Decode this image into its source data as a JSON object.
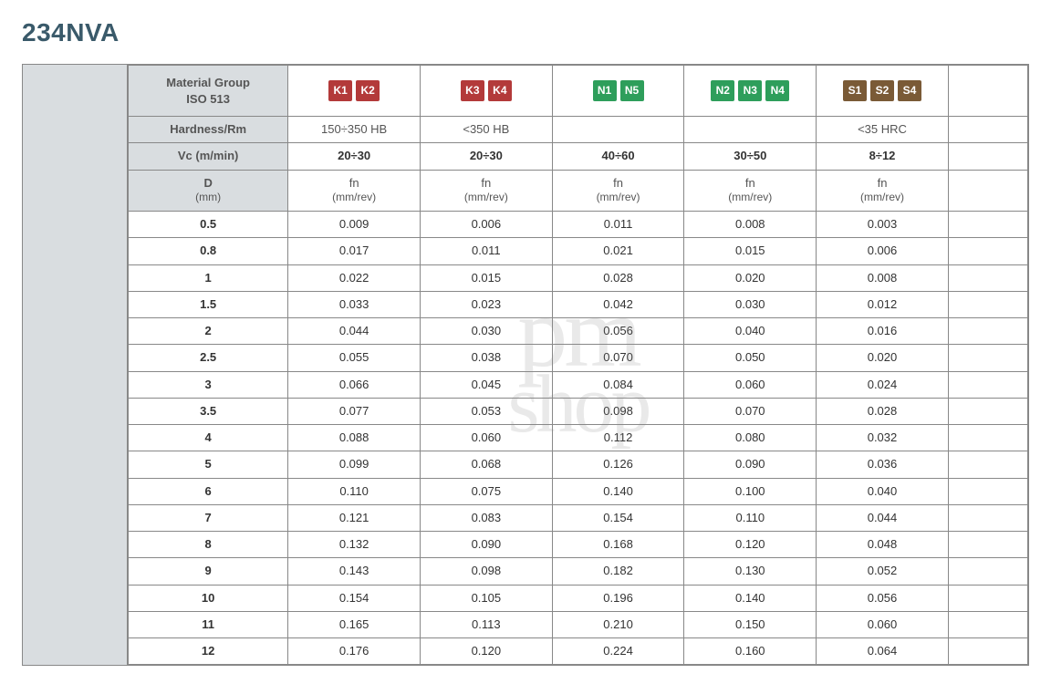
{
  "title": "234NVA",
  "colors": {
    "header_bg": "#d9dde0",
    "border": "#888888",
    "title_color": "#3a5a6a",
    "text": "#333333",
    "muted": "#555555",
    "badge_red": "#b33a3a",
    "badge_green": "#2e9e5b",
    "badge_brown": "#7a5a36"
  },
  "header": {
    "material_group_l1": "Material Group",
    "material_group_l2": "ISO 513",
    "hardness_label": "Hardness/Rm",
    "vc_label": "Vc (m/min)",
    "d_label_l1": "D",
    "d_label_l2": "(mm)",
    "fn_label_l1": "fn",
    "fn_label_l2": "(mm/rev)"
  },
  "columns": [
    {
      "badges": [
        "K1",
        "K2"
      ],
      "badge_color": "#b33a3a",
      "hardness": "150÷350 HB",
      "vc": "20÷30"
    },
    {
      "badges": [
        "K3",
        "K4"
      ],
      "badge_color": "#b33a3a",
      "hardness": "<350 HB",
      "vc": "20÷30"
    },
    {
      "badges": [
        "N1",
        "N5"
      ],
      "badge_color": "#2e9e5b",
      "hardness": "",
      "vc": "40÷60"
    },
    {
      "badges": [
        "N2",
        "N3",
        "N4"
      ],
      "badge_color": "#2e9e5b",
      "hardness": "",
      "vc": "30÷50"
    },
    {
      "badges": [
        "S1",
        "S2",
        "S4"
      ],
      "badge_color": "#7a5a36",
      "hardness": "<35 HRC",
      "vc": "8÷12"
    },
    {
      "badges": [],
      "badge_color": "",
      "hardness": "",
      "vc": ""
    }
  ],
  "rows": [
    {
      "d": "0.5",
      "fn": [
        "0.009",
        "0.006",
        "0.011",
        "0.008",
        "0.003",
        ""
      ]
    },
    {
      "d": "0.8",
      "fn": [
        "0.017",
        "0.011",
        "0.021",
        "0.015",
        "0.006",
        ""
      ]
    },
    {
      "d": "1",
      "fn": [
        "0.022",
        "0.015",
        "0.028",
        "0.020",
        "0.008",
        ""
      ]
    },
    {
      "d": "1.5",
      "fn": [
        "0.033",
        "0.023",
        "0.042",
        "0.030",
        "0.012",
        ""
      ]
    },
    {
      "d": "2",
      "fn": [
        "0.044",
        "0.030",
        "0.056",
        "0.040",
        "0.016",
        ""
      ]
    },
    {
      "d": "2.5",
      "fn": [
        "0.055",
        "0.038",
        "0.070",
        "0.050",
        "0.020",
        ""
      ]
    },
    {
      "d": "3",
      "fn": [
        "0.066",
        "0.045",
        "0.084",
        "0.060",
        "0.024",
        ""
      ]
    },
    {
      "d": "3.5",
      "fn": [
        "0.077",
        "0.053",
        "0.098",
        "0.070",
        "0.028",
        ""
      ]
    },
    {
      "d": "4",
      "fn": [
        "0.088",
        "0.060",
        "0.112",
        "0.080",
        "0.032",
        ""
      ]
    },
    {
      "d": "5",
      "fn": [
        "0.099",
        "0.068",
        "0.126",
        "0.090",
        "0.036",
        ""
      ]
    },
    {
      "d": "6",
      "fn": [
        "0.110",
        "0.075",
        "0.140",
        "0.100",
        "0.040",
        ""
      ]
    },
    {
      "d": "7",
      "fn": [
        "0.121",
        "0.083",
        "0.154",
        "0.110",
        "0.044",
        ""
      ]
    },
    {
      "d": "8",
      "fn": [
        "0.132",
        "0.090",
        "0.168",
        "0.120",
        "0.048",
        ""
      ]
    },
    {
      "d": "9",
      "fn": [
        "0.143",
        "0.098",
        "0.182",
        "0.130",
        "0.052",
        ""
      ]
    },
    {
      "d": "10",
      "fn": [
        "0.154",
        "0.105",
        "0.196",
        "0.140",
        "0.056",
        ""
      ]
    },
    {
      "d": "11",
      "fn": [
        "0.165",
        "0.113",
        "0.210",
        "0.150",
        "0.060",
        ""
      ]
    },
    {
      "d": "12",
      "fn": [
        "0.176",
        "0.120",
        "0.224",
        "0.160",
        "0.064",
        ""
      ]
    }
  ],
  "watermark": {
    "top": "pm",
    "bottom": "shop"
  }
}
